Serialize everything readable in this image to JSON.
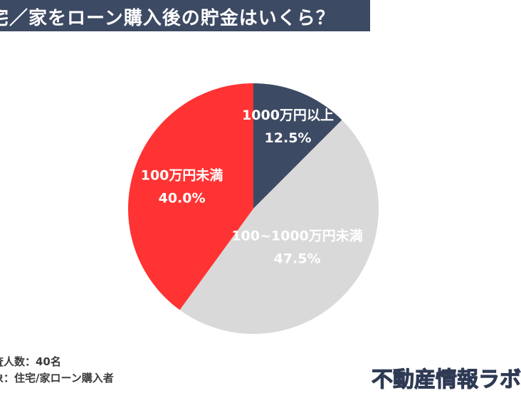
{
  "header": {
    "title": "宅／家をローン購入後の貯金はいくら？"
  },
  "chart_data": {
    "type": "pie",
    "title": "宅／家をローン購入後の貯金はいくら？",
    "slices": [
      {
        "label": "1000万円以上",
        "value": 12.5,
        "value_label": "12.5%",
        "color": "#3d4a63"
      },
      {
        "label": "100~1000万円未満",
        "value": 47.5,
        "value_label": "47.5%",
        "color": "#d9d9d9"
      },
      {
        "label": "100万円未満",
        "value": 40.0,
        "value_label": "40.0%",
        "color": "#ff3333"
      }
    ],
    "start": "12 o'clock",
    "direction": "clockwise"
  },
  "footnotes": {
    "line1": "査人数：40名",
    "line2": "象：住宅/家ローン購入者"
  },
  "brand": {
    "logo_text": "不動産情報ラボ"
  }
}
